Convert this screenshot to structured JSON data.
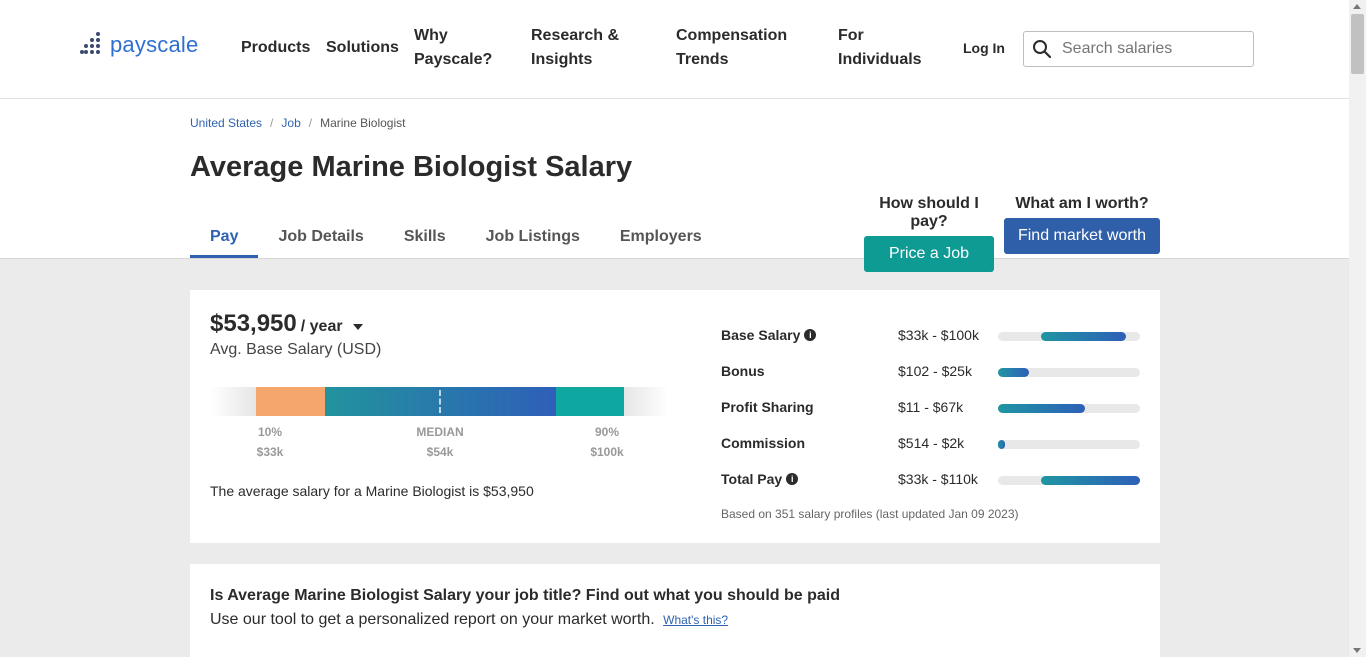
{
  "header": {
    "logo_text": "payscale",
    "nav": [
      {
        "line1": "Products",
        "line2": ""
      },
      {
        "line1": "Solutions",
        "line2": ""
      },
      {
        "line1": "Why",
        "line2": "Payscale?"
      },
      {
        "line1": "Research &",
        "line2": "Insights"
      },
      {
        "line1": "Compensation",
        "line2": "Trends"
      },
      {
        "line1": "For",
        "line2": "Individuals"
      }
    ],
    "login": "Log In",
    "search_placeholder": "Search salaries"
  },
  "breadcrumb": {
    "items": [
      "United States",
      "Job",
      "Marine Biologist"
    ],
    "separator": "/"
  },
  "page_title": "Average Marine Biologist Salary",
  "tabs": [
    "Pay",
    "Job Details",
    "Skills",
    "Job Listings",
    "Employers"
  ],
  "active_tab": "Pay",
  "cta": {
    "pay_question": "How should I pay?",
    "pay_button": "Price a Job",
    "worth_question": "What am I worth?",
    "worth_button": "Find market worth"
  },
  "salary": {
    "amount": "$53,950",
    "period": "/ year",
    "label": "Avg. Base Salary (USD)",
    "percentiles": [
      {
        "label": "10%",
        "value": "$33k"
      },
      {
        "label": "MEDIAN",
        "value": "$54k"
      },
      {
        "label": "90%",
        "value": "$100k"
      }
    ],
    "summary": "The average salary for a Marine Biologist is $53,950"
  },
  "pay_breakdown": [
    {
      "label": "Base Salary",
      "info": true,
      "range": "$33k - $100k",
      "bar_start": 0.3,
      "bar_end": 0.9
    },
    {
      "label": "Bonus",
      "info": false,
      "range": "$102 - $25k",
      "bar_start": 0.0,
      "bar_end": 0.22
    },
    {
      "label": "Profit Sharing",
      "info": false,
      "range": "$11 - $67k",
      "bar_start": 0.0,
      "bar_end": 0.61
    },
    {
      "label": "Commission",
      "info": false,
      "range": "$514 - $2k",
      "bar_start": 0.0,
      "bar_end": 0.05
    },
    {
      "label": "Total Pay",
      "info": true,
      "range": "$33k - $110k",
      "bar_start": 0.3,
      "bar_end": 1.0
    }
  ],
  "footnote": "Based on 351 salary profiles (last updated Jan 09 2023)",
  "job_title_prompt": {
    "heading": "Is Average Marine Biologist Salary your job title? Find out what you should be paid",
    "body": "Use our tool to get a personalized report on your market worth.",
    "link": "What's this?"
  },
  "colors": {
    "brand_blue": "#2e62b1",
    "teal_button": "#0d9b94",
    "blue_button": "#2e5fa8",
    "percentile_low": "#f4a66c",
    "percentile_high": "#0fa8a0"
  },
  "icons": {
    "search": "search-icon",
    "info": "info-icon",
    "dropdown": "caret-down-icon"
  }
}
